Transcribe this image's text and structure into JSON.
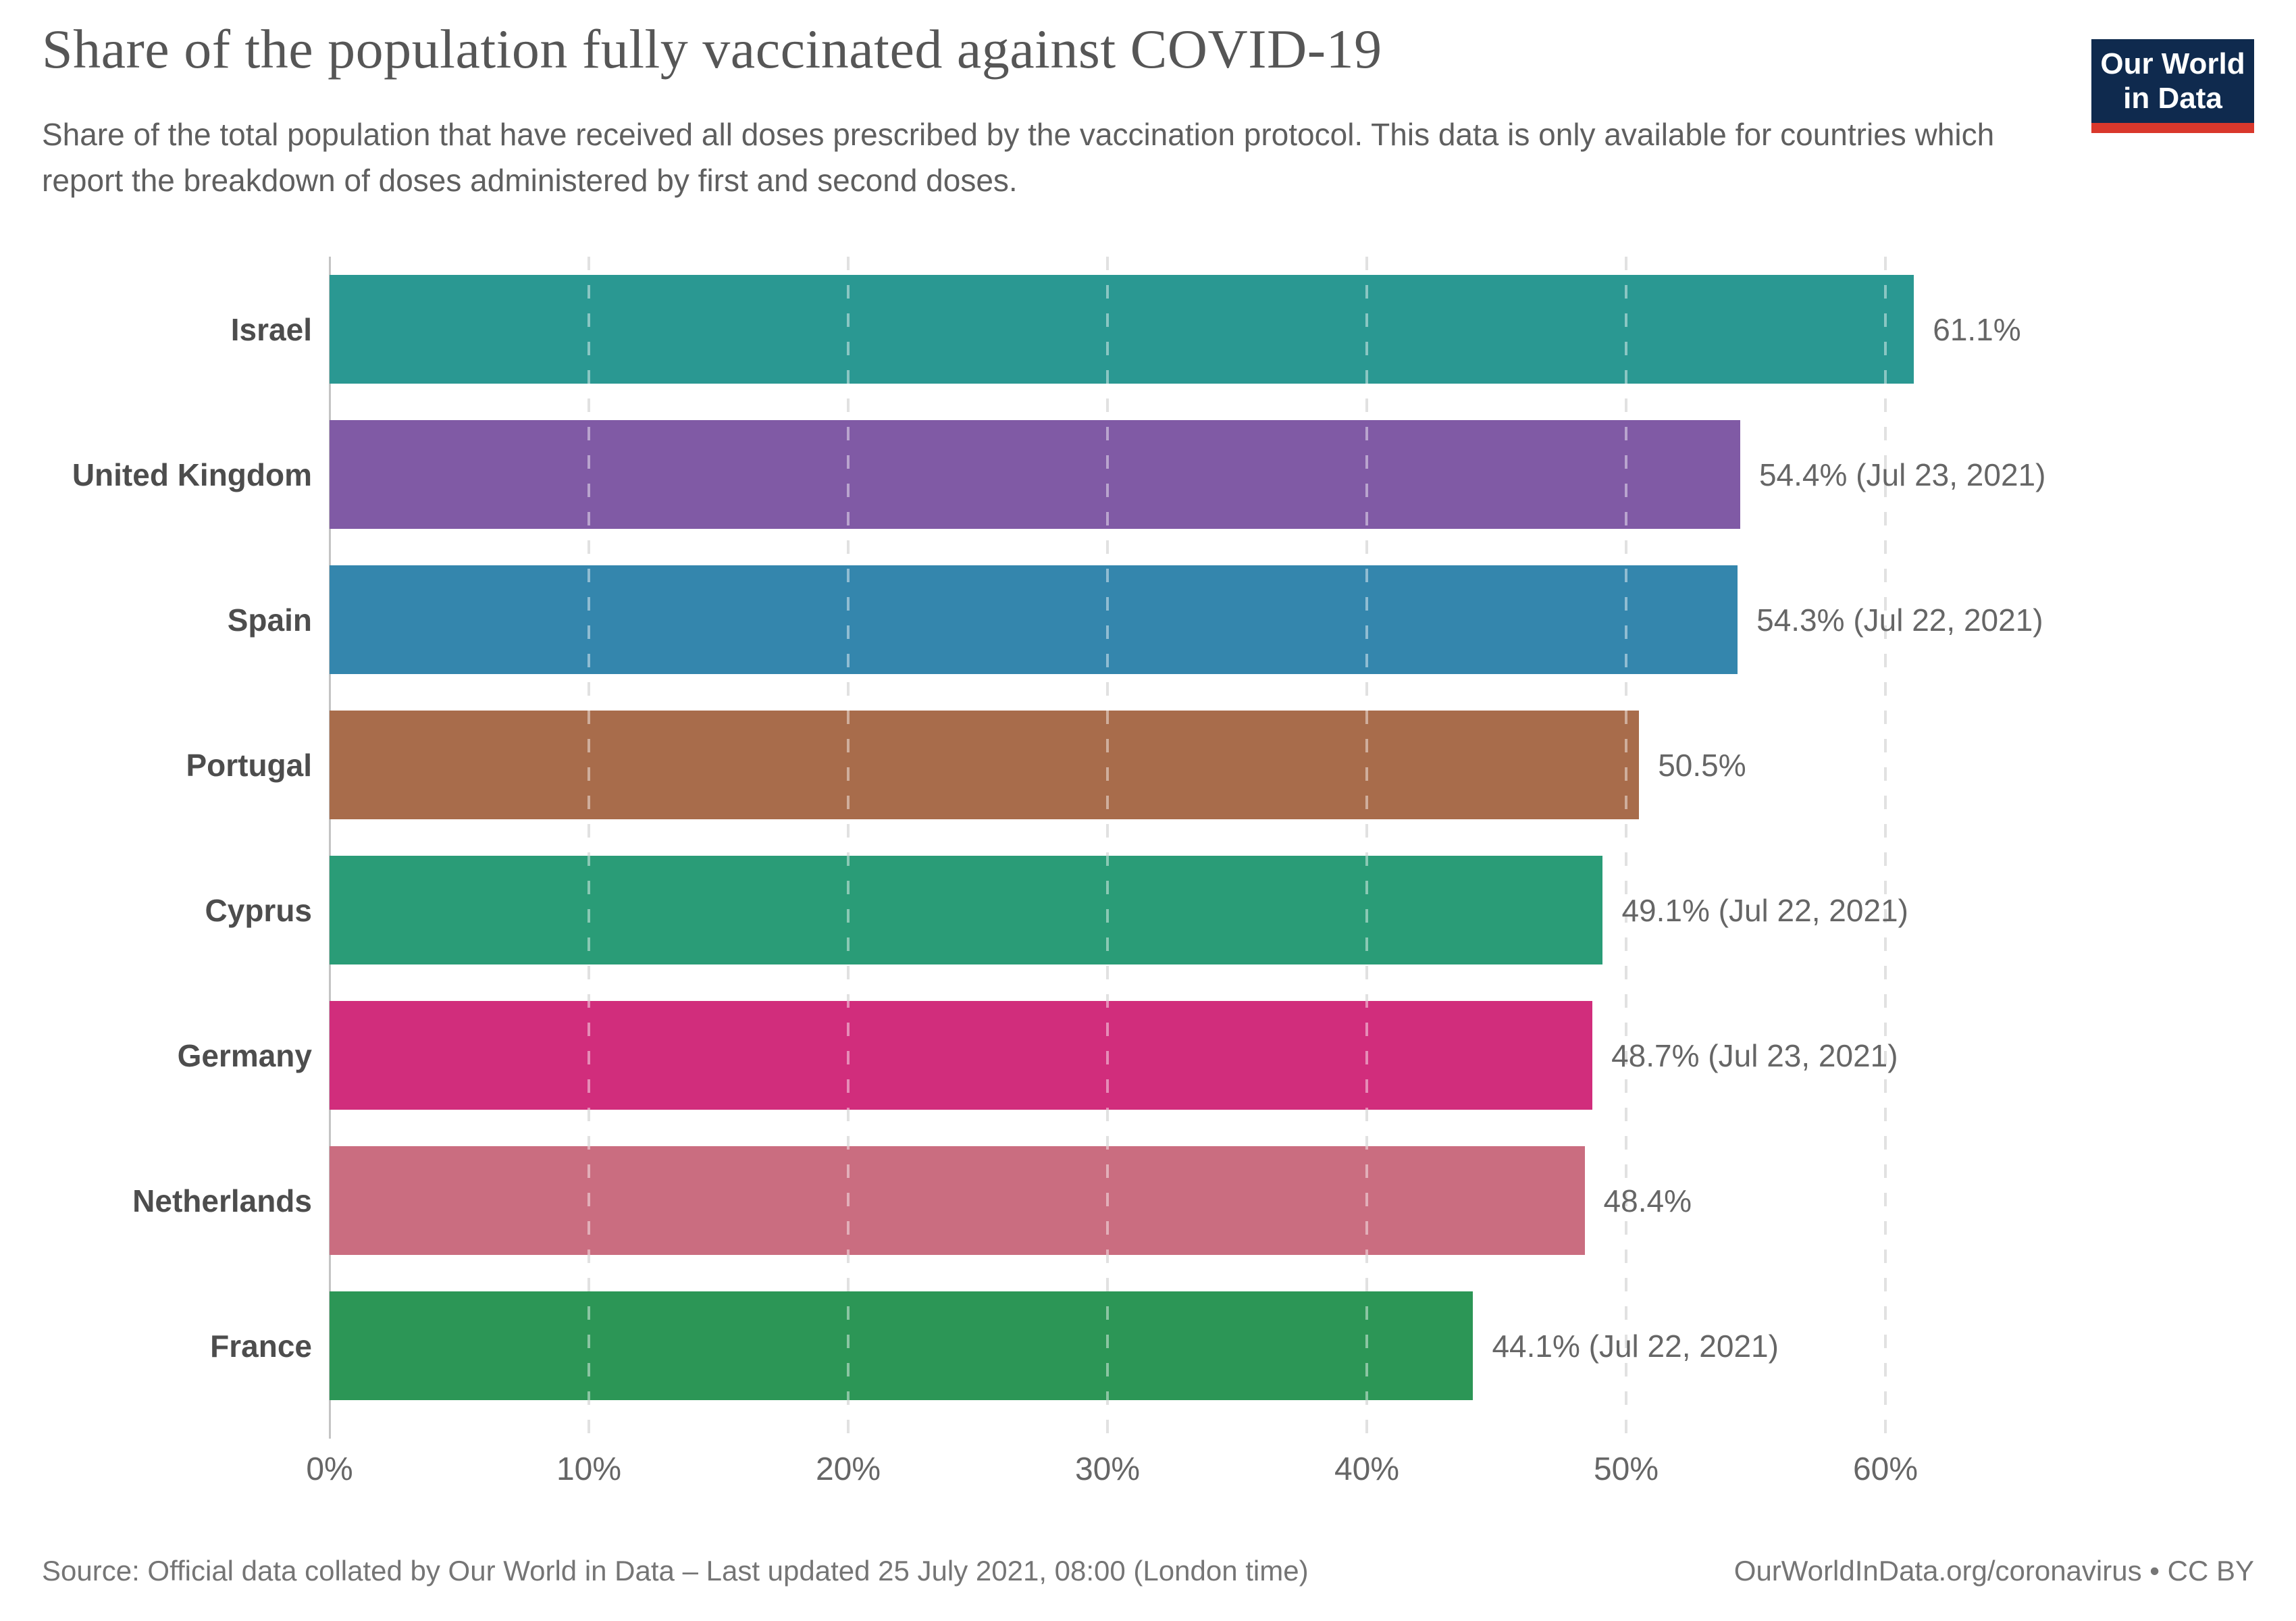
{
  "header": {
    "title": "Share of the population fully vaccinated against COVID-19",
    "subtitle": "Share of the total population that have received all doses prescribed by the vaccination protocol. This data is only available for countries which report the breakdown of doses administered by first and second doses."
  },
  "logo": {
    "line1": "Our World",
    "line2": "in Data",
    "bg_color": "#0f2a4e",
    "accent_color": "#d9382c"
  },
  "chart_data": {
    "type": "bar",
    "orientation": "horizontal",
    "title": "Share of the population fully vaccinated against COVID-19",
    "xlabel": "",
    "ylabel": "",
    "categories": [
      "Israel",
      "United Kingdom",
      "Spain",
      "Portugal",
      "Cyprus",
      "Germany",
      "Netherlands",
      "France"
    ],
    "values": [
      61.1,
      54.4,
      54.3,
      50.5,
      49.1,
      48.7,
      48.4,
      44.1
    ],
    "value_labels": [
      "61.1%",
      "54.4% (Jul 23, 2021)",
      "54.3% (Jul 22, 2021)",
      "50.5%",
      "49.1% (Jul 22, 2021)",
      "48.7% (Jul 23, 2021)",
      "48.4%",
      "44.1% (Jul 22, 2021)"
    ],
    "bar_colors": [
      "#2a9892",
      "#805aa5",
      "#3486ad",
      "#a86c4b",
      "#2a9c77",
      "#d12d7c",
      "#ca6d80",
      "#2c9656"
    ],
    "xlim": [
      0,
      74
    ],
    "xticks": {
      "values": [
        0,
        10,
        20,
        30,
        40,
        50,
        60
      ],
      "labels": [
        "0%",
        "10%",
        "20%",
        "30%",
        "40%",
        "50%",
        "60%"
      ]
    },
    "grid": "vertical-dashed",
    "legend": "none"
  },
  "footer": {
    "source": "Source: Official data collated by Our World in Data – Last updated 25 July 2021, 08:00 (London time)",
    "link": "OurWorldInData.org/coronavirus • CC BY"
  }
}
